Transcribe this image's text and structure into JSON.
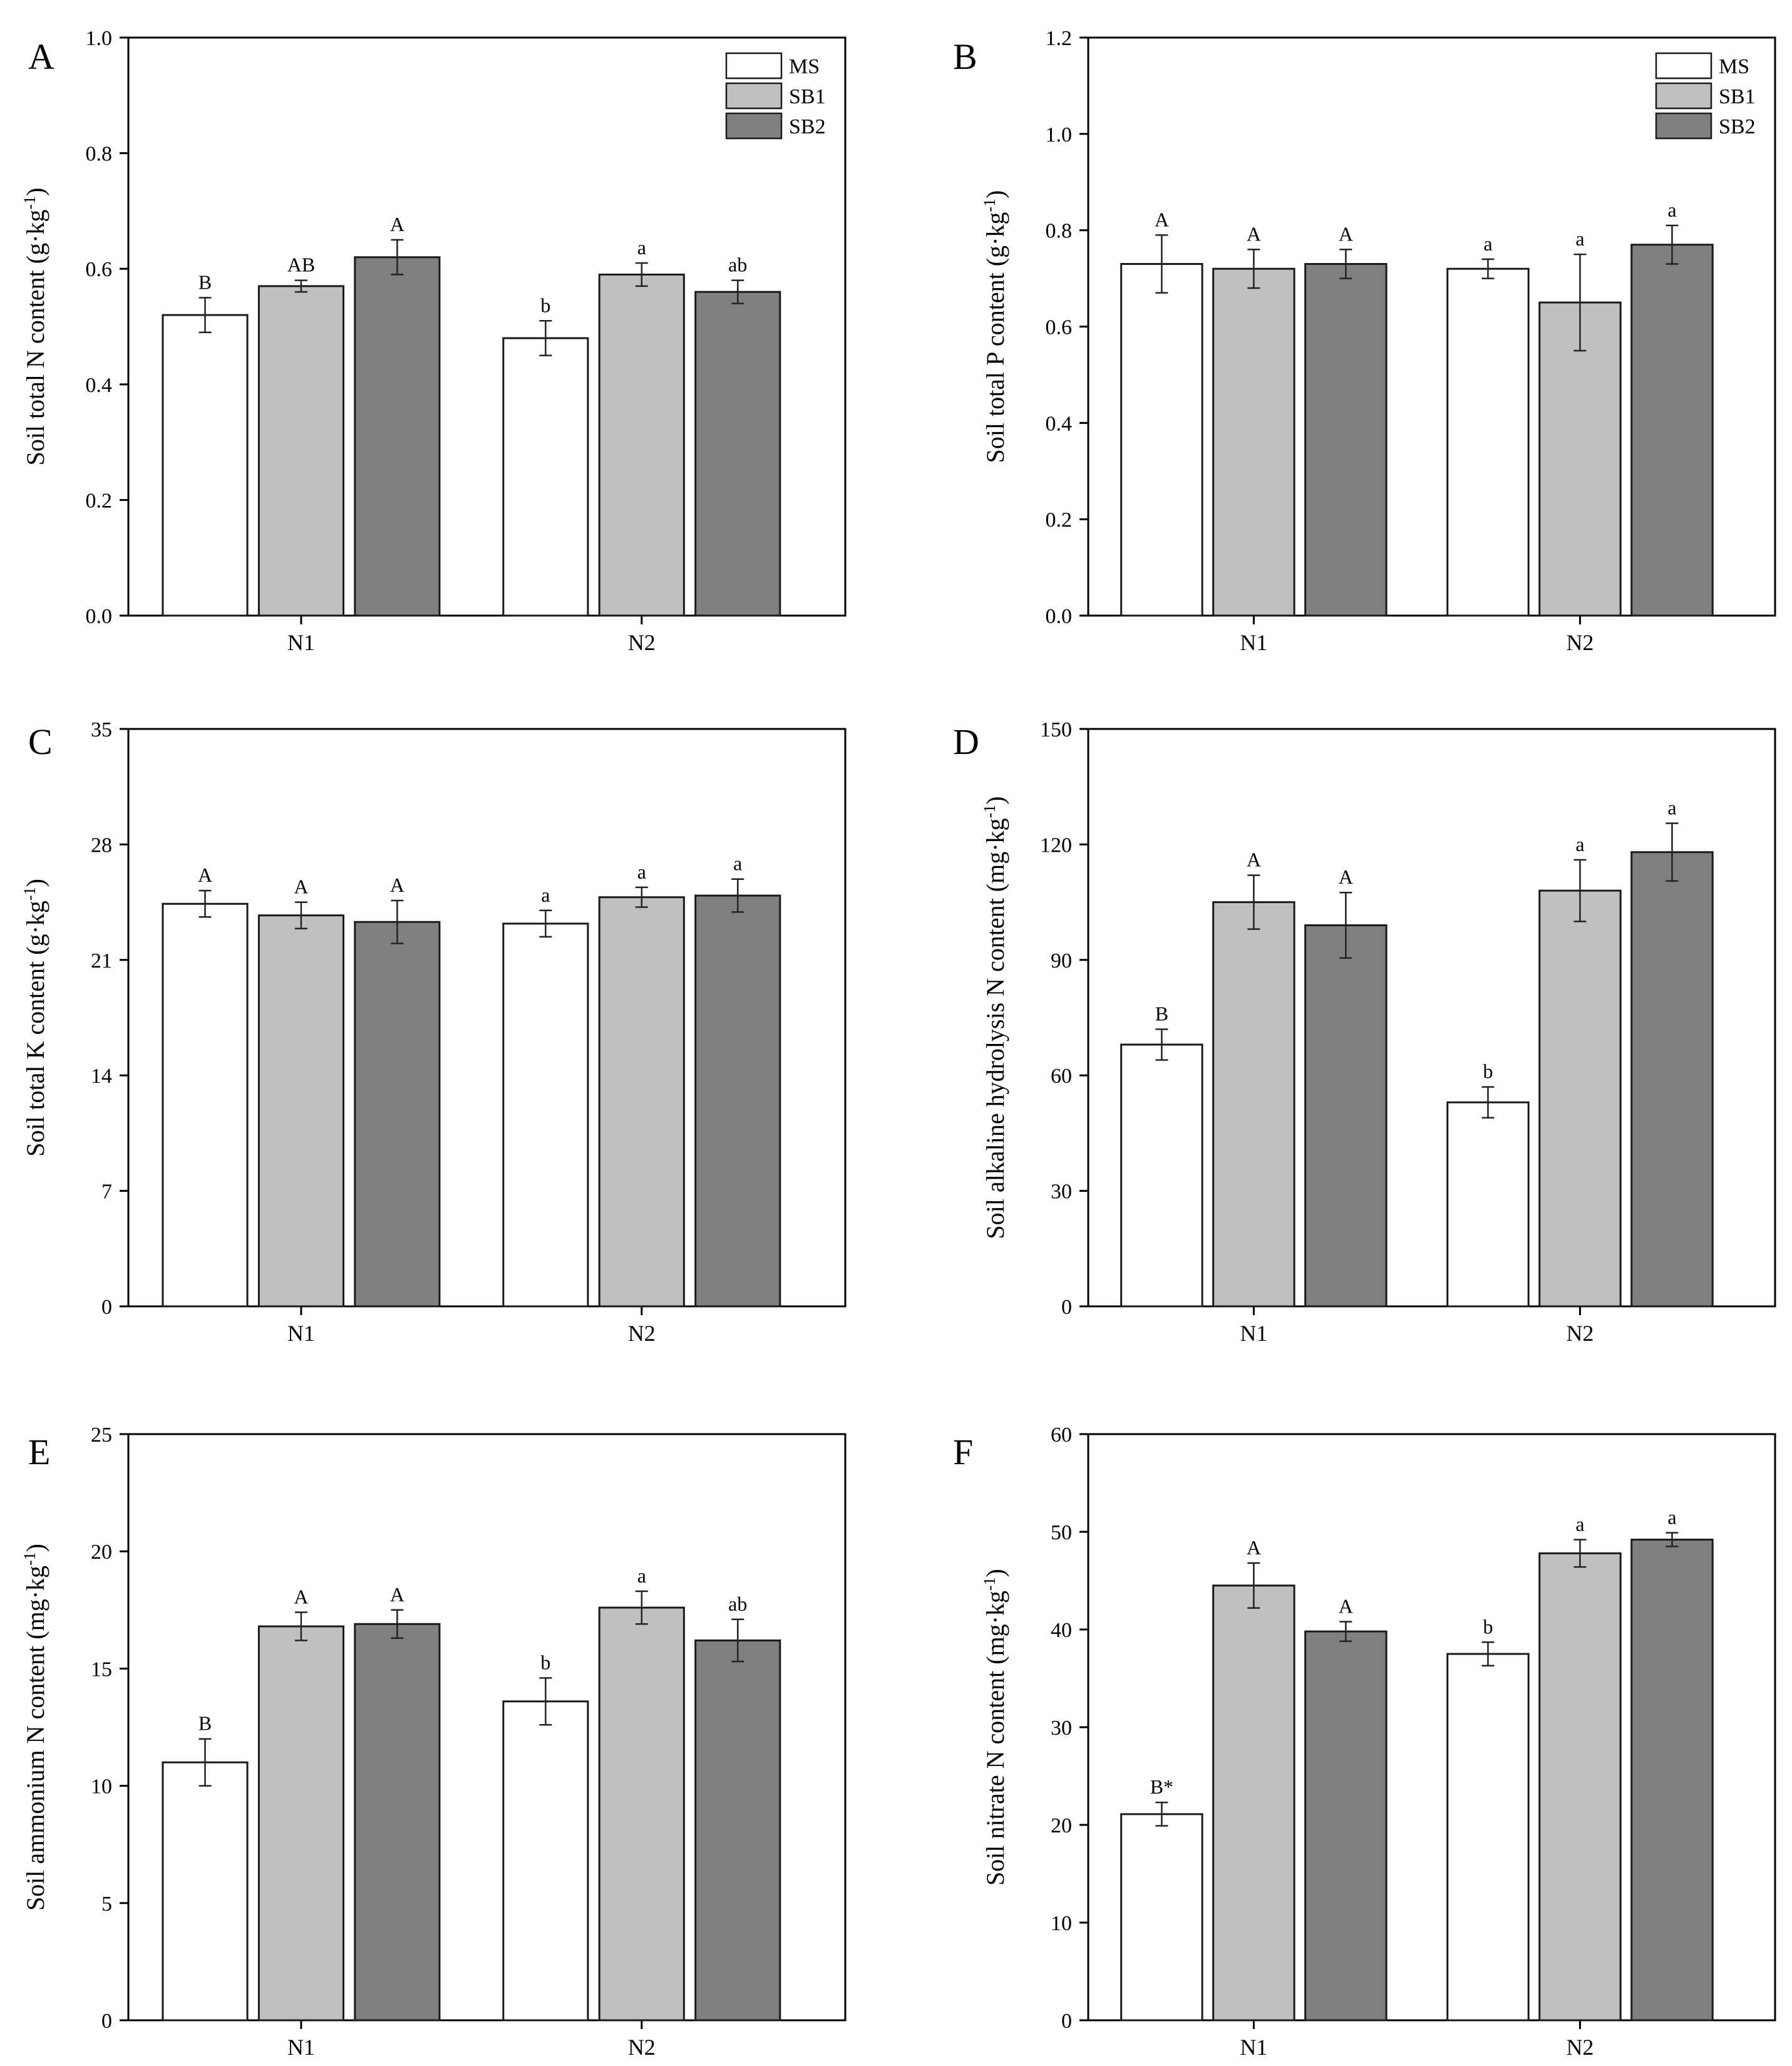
{
  "colors": {
    "MS": "#ffffff",
    "SB1": "#c0c0c0",
    "SB2": "#808082",
    "axis": "#000000",
    "bar_stroke": "#1a1a1a"
  },
  "chart_data": [
    {
      "type": "bar",
      "panel": "A",
      "ylabel": "Soil total N content (g·kg-1)",
      "categories": [
        "N1",
        "N2"
      ],
      "ylim": [
        0,
        1.0
      ],
      "yticks": [
        0.0,
        0.2,
        0.4,
        0.6,
        0.8,
        1.0
      ],
      "tick_decimals": 1,
      "legend": [
        "MS",
        "SB1",
        "SB2"
      ],
      "legend_position": "top-right",
      "series": [
        {
          "name": "MS",
          "values": [
            0.52,
            0.48
          ],
          "errors": [
            0.03,
            0.03
          ],
          "labels": [
            "B",
            "b"
          ]
        },
        {
          "name": "SB1",
          "values": [
            0.57,
            0.59
          ],
          "errors": [
            0.01,
            0.02
          ],
          "labels": [
            "AB",
            "a"
          ]
        },
        {
          "name": "SB2",
          "values": [
            0.62,
            0.56
          ],
          "errors": [
            0.03,
            0.02
          ],
          "labels": [
            "A",
            "ab"
          ]
        }
      ]
    },
    {
      "type": "bar",
      "panel": "B",
      "ylabel": "Soil total P content (g·kg-1)",
      "categories": [
        "N1",
        "N2"
      ],
      "ylim": [
        0,
        1.2
      ],
      "yticks": [
        0.0,
        0.2,
        0.4,
        0.6,
        0.8,
        1.0,
        1.2
      ],
      "tick_decimals": 1,
      "legend": [
        "MS",
        "SB1",
        "SB2"
      ],
      "legend_position": "top-right",
      "series": [
        {
          "name": "MS",
          "values": [
            0.73,
            0.72
          ],
          "errors": [
            0.06,
            0.02
          ],
          "labels": [
            "A",
            "a"
          ]
        },
        {
          "name": "SB1",
          "values": [
            0.72,
            0.65
          ],
          "errors": [
            0.04,
            0.1
          ],
          "labels": [
            "A",
            "a"
          ]
        },
        {
          "name": "SB2",
          "values": [
            0.73,
            0.77
          ],
          "errors": [
            0.03,
            0.04
          ],
          "labels": [
            "A",
            "a"
          ]
        }
      ]
    },
    {
      "type": "bar",
      "panel": "C",
      "ylabel": "Soil total K content (g·kg-1)",
      "categories": [
        "N1",
        "N2"
      ],
      "ylim": [
        0,
        35
      ],
      "yticks": [
        0,
        7,
        14,
        21,
        28,
        35
      ],
      "tick_decimals": 0,
      "legend": [],
      "legend_position": "",
      "series": [
        {
          "name": "MS",
          "values": [
            24.4,
            23.2
          ],
          "errors": [
            0.8,
            0.8
          ],
          "labels": [
            "A",
            "a"
          ]
        },
        {
          "name": "SB1",
          "values": [
            23.7,
            24.8
          ],
          "errors": [
            0.8,
            0.6
          ],
          "labels": [
            "A",
            "a"
          ]
        },
        {
          "name": "SB2",
          "values": [
            23.3,
            24.9
          ],
          "errors": [
            1.3,
            1.0
          ],
          "labels": [
            "A",
            "a"
          ]
        }
      ]
    },
    {
      "type": "bar",
      "panel": "D",
      "ylabel": "Soil alkaline hydrolysis N content (mg·kg-1)",
      "categories": [
        "N1",
        "N2"
      ],
      "ylim": [
        0,
        150
      ],
      "yticks": [
        0,
        30,
        60,
        90,
        120,
        150
      ],
      "tick_decimals": 0,
      "legend": [],
      "legend_position": "",
      "series": [
        {
          "name": "MS",
          "values": [
            68,
            53
          ],
          "errors": [
            4,
            4
          ],
          "labels": [
            "B",
            "b"
          ]
        },
        {
          "name": "SB1",
          "values": [
            105,
            108
          ],
          "errors": [
            7,
            8
          ],
          "labels": [
            "A",
            "a"
          ]
        },
        {
          "name": "SB2",
          "values": [
            99,
            118
          ],
          "errors": [
            8.5,
            7.5
          ],
          "labels": [
            "A",
            "a"
          ]
        }
      ]
    },
    {
      "type": "bar",
      "panel": "E",
      "ylabel": "Soil ammonium N content (mg·kg-1)",
      "categories": [
        "N1",
        "N2"
      ],
      "ylim": [
        0,
        25
      ],
      "yticks": [
        0,
        5,
        10,
        15,
        20,
        25
      ],
      "tick_decimals": 0,
      "legend": [],
      "legend_position": "",
      "series": [
        {
          "name": "MS",
          "values": [
            11.0,
            13.6
          ],
          "errors": [
            1.0,
            1.0
          ],
          "labels": [
            "B",
            "b"
          ]
        },
        {
          "name": "SB1",
          "values": [
            16.8,
            17.6
          ],
          "errors": [
            0.6,
            0.7
          ],
          "labels": [
            "A",
            "a"
          ]
        },
        {
          "name": "SB2",
          "values": [
            16.9,
            16.2
          ],
          "errors": [
            0.6,
            0.9
          ],
          "labels": [
            "A",
            "ab"
          ]
        }
      ]
    },
    {
      "type": "bar",
      "panel": "F",
      "ylabel": "Soil nitrate N content (mg·kg-1)",
      "categories": [
        "N1",
        "N2"
      ],
      "ylim": [
        0,
        60
      ],
      "yticks": [
        0,
        10,
        20,
        30,
        40,
        50,
        60
      ],
      "tick_decimals": 0,
      "legend": [],
      "legend_position": "",
      "series": [
        {
          "name": "MS",
          "values": [
            21.1,
            37.5
          ],
          "errors": [
            1.2,
            1.2
          ],
          "labels": [
            "B*",
            "b"
          ]
        },
        {
          "name": "SB1",
          "values": [
            44.5,
            47.8
          ],
          "errors": [
            2.3,
            1.4
          ],
          "labels": [
            "A",
            "a"
          ]
        },
        {
          "name": "SB2",
          "values": [
            39.8,
            49.2
          ],
          "errors": [
            1.0,
            0.7
          ],
          "labels": [
            "A",
            "a"
          ]
        }
      ]
    }
  ]
}
